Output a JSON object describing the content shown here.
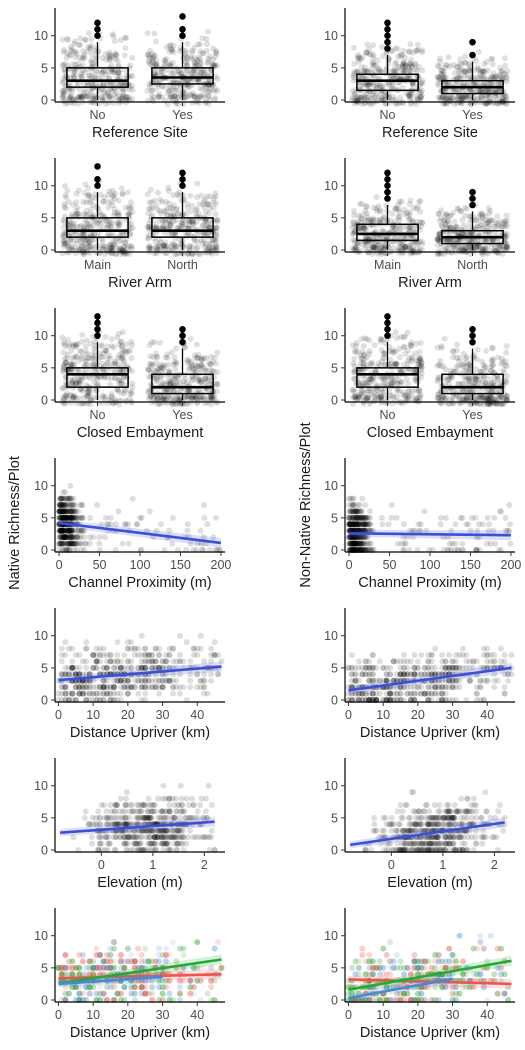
{
  "figure": {
    "left_ylabel": "Native Richness/Plot",
    "right_ylabel": "Non-Native Richness/Plot"
  },
  "chart_data": [
    {
      "id": "L1",
      "type": "box",
      "categories": [
        "No",
        "Yes"
      ],
      "xlabel": "Reference Site",
      "ylim": [
        0,
        14
      ],
      "yticks": [
        0,
        5,
        10
      ],
      "boxes": [
        {
          "q1": 2,
          "median": 3,
          "q3": 5,
          "whisker_low": 0,
          "whisker_high": 9,
          "outliers": [
            10,
            11,
            12
          ]
        },
        {
          "q1": 2.5,
          "median": 3.5,
          "q3": 5,
          "whisker_low": 0,
          "whisker_high": 9,
          "outliers": [
            10,
            11,
            13
          ]
        }
      ]
    },
    {
      "id": "R1",
      "type": "box",
      "categories": [
        "No",
        "Yes"
      ],
      "xlabel": "Reference Site",
      "ylim": [
        0,
        14
      ],
      "yticks": [
        0,
        5,
        10
      ],
      "boxes": [
        {
          "q1": 1.5,
          "median": 3,
          "q3": 4,
          "whisker_low": 0,
          "whisker_high": 7,
          "outliers": [
            8,
            9,
            10,
            11,
            12
          ]
        },
        {
          "q1": 1,
          "median": 2,
          "q3": 3,
          "whisker_low": 0,
          "whisker_high": 6,
          "outliers": [
            7,
            9
          ]
        }
      ]
    },
    {
      "id": "L2",
      "type": "box",
      "categories": [
        "Main",
        "North"
      ],
      "xlabel": "River Arm",
      "ylim": [
        0,
        14
      ],
      "yticks": [
        0,
        5,
        10
      ],
      "boxes": [
        {
          "q1": 2,
          "median": 3,
          "q3": 5,
          "whisker_low": 0,
          "whisker_high": 9,
          "outliers": [
            10,
            11,
            13
          ]
        },
        {
          "q1": 2,
          "median": 3,
          "q3": 5,
          "whisker_low": 0,
          "whisker_high": 9,
          "outliers": [
            10,
            11,
            12
          ]
        }
      ]
    },
    {
      "id": "R2",
      "type": "box",
      "categories": [
        "Main",
        "North"
      ],
      "xlabel": "River Arm",
      "ylim": [
        0,
        14
      ],
      "yticks": [
        0,
        5,
        10
      ],
      "boxes": [
        {
          "q1": 1.5,
          "median": 2.5,
          "q3": 4,
          "whisker_low": 0,
          "whisker_high": 7,
          "outliers": [
            8,
            9,
            10,
            11,
            12
          ]
        },
        {
          "q1": 1,
          "median": 2,
          "q3": 3,
          "whisker_low": 0,
          "whisker_high": 6,
          "outliers": [
            7,
            8,
            9
          ]
        }
      ]
    },
    {
      "id": "L3",
      "type": "box",
      "categories": [
        "No",
        "Yes"
      ],
      "xlabel": "Closed Embayment",
      "ylim": [
        0,
        14
      ],
      "yticks": [
        0,
        5,
        10
      ],
      "boxes": [
        {
          "q1": 2,
          "median": 4,
          "q3": 5,
          "whisker_low": 0,
          "whisker_high": 9,
          "outliers": [
            10,
            11,
            12,
            13
          ]
        },
        {
          "q1": 1,
          "median": 2,
          "q3": 4,
          "whisker_low": 0,
          "whisker_high": 8,
          "outliers": [
            9,
            10,
            11
          ]
        }
      ]
    },
    {
      "id": "R3",
      "type": "box",
      "categories": [
        "No",
        "Yes"
      ],
      "xlabel": "Closed Embayment",
      "ylim": [
        0,
        14
      ],
      "yticks": [
        0,
        5,
        10
      ],
      "boxes": [
        {
          "q1": 2,
          "median": 4,
          "q3": 5,
          "whisker_low": 0,
          "whisker_high": 9,
          "outliers": [
            10,
            11,
            12,
            13
          ]
        },
        {
          "q1": 1,
          "median": 2,
          "q3": 4,
          "whisker_low": 0,
          "whisker_high": 8,
          "outliers": [
            9,
            10,
            11
          ]
        }
      ]
    },
    {
      "id": "L4",
      "type": "scatter",
      "xlabel": "Channel Proximity (m)",
      "xlim": [
        -5,
        205
      ],
      "xticks": [
        0,
        50,
        100,
        150,
        200
      ],
      "ylim": [
        0,
        14
      ],
      "yticks": [
        0,
        5,
        10
      ],
      "trend": [
        {
          "color": "#3b50d6",
          "x": [
            0,
            200
          ],
          "y": [
            4.2,
            1.1
          ]
        }
      ]
    },
    {
      "id": "R4",
      "type": "scatter",
      "xlabel": "Channel Proximity (m)",
      "xlim": [
        -5,
        205
      ],
      "xticks": [
        0,
        50,
        100,
        150,
        200
      ],
      "ylim": [
        0,
        14
      ],
      "yticks": [
        0,
        5,
        10
      ],
      "trend": [
        {
          "color": "#3b50d6",
          "x": [
            0,
            200
          ],
          "y": [
            2.6,
            2.3
          ]
        }
      ]
    },
    {
      "id": "L5",
      "type": "scatter",
      "xlabel": "Distance Upriver (km)",
      "xlim": [
        -1,
        48
      ],
      "xticks": [
        0,
        10,
        20,
        30,
        40
      ],
      "ylim": [
        0,
        14
      ],
      "yticks": [
        0,
        5,
        10
      ],
      "trend": [
        {
          "color": "#3b50d6",
          "x": [
            0,
            47
          ],
          "y": [
            3.1,
            5.2
          ]
        }
      ]
    },
    {
      "id": "R5",
      "type": "scatter",
      "xlabel": "Distance Upriver (km)",
      "xlim": [
        -1,
        48
      ],
      "xticks": [
        0,
        10,
        20,
        30,
        40
      ],
      "ylim": [
        0,
        14
      ],
      "yticks": [
        0,
        5,
        10
      ],
      "trend": [
        {
          "color": "#3b50d6",
          "x": [
            0,
            47
          ],
          "y": [
            1.5,
            5.0
          ]
        }
      ]
    },
    {
      "id": "L6",
      "type": "scatter",
      "xlabel": "Elevation (m)",
      "xlim": [
        -0.9,
        2.4
      ],
      "xticks": [
        0,
        1,
        2
      ],
      "ylim": [
        0,
        14
      ],
      "yticks": [
        0,
        5,
        10
      ],
      "trend": [
        {
          "color": "#3b50d6",
          "x": [
            -0.8,
            2.2
          ],
          "y": [
            2.7,
            4.4
          ]
        }
      ]
    },
    {
      "id": "R6",
      "type": "scatter",
      "xlabel": "Elevation (m)",
      "xlim": [
        -0.9,
        2.4
      ],
      "xticks": [
        0,
        1,
        2
      ],
      "ylim": [
        0,
        14
      ],
      "yticks": [
        0,
        5,
        10
      ],
      "trend": [
        {
          "color": "#3b50d6",
          "x": [
            -0.8,
            2.2
          ],
          "y": [
            0.8,
            4.3
          ]
        }
      ]
    },
    {
      "id": "L7",
      "type": "scatter",
      "xlabel": "Distance Upriver (km)",
      "xlim": [
        -1,
        48
      ],
      "xticks": [
        0,
        10,
        20,
        30,
        40
      ],
      "ylim": [
        0,
        14
      ],
      "yticks": [
        0,
        5,
        10
      ],
      "point_colors": [
        "#2ca02c",
        "#e8584f",
        "#4a88d6"
      ],
      "trend": [
        {
          "color": "#e8584f",
          "x": [
            0,
            47
          ],
          "y": [
            3.4,
            4.0
          ]
        },
        {
          "color": "#22aa33",
          "x": [
            0,
            47
          ],
          "y": [
            2.6,
            6.3
          ]
        },
        {
          "color": "#4a88d6",
          "x": [
            0,
            30
          ],
          "y": [
            2.5,
            3.6
          ]
        }
      ]
    },
    {
      "id": "R7",
      "type": "scatter",
      "xlabel": "Distance Upriver (km)",
      "xlim": [
        -1,
        48
      ],
      "xticks": [
        0,
        10,
        20,
        30,
        40
      ],
      "ylim": [
        0,
        14
      ],
      "yticks": [
        0,
        5,
        10
      ],
      "point_colors": [
        "#2ca02c",
        "#e8584f",
        "#4a88d6"
      ],
      "trend": [
        {
          "color": "#e8584f",
          "x": [
            0,
            47
          ],
          "y": [
            3.2,
            2.5
          ]
        },
        {
          "color": "#22aa33",
          "x": [
            0,
            47
          ],
          "y": [
            1.6,
            6.1
          ]
        },
        {
          "color": "#4a88d6",
          "x": [
            0,
            30
          ],
          "y": [
            0.3,
            3.3
          ]
        }
      ]
    }
  ]
}
